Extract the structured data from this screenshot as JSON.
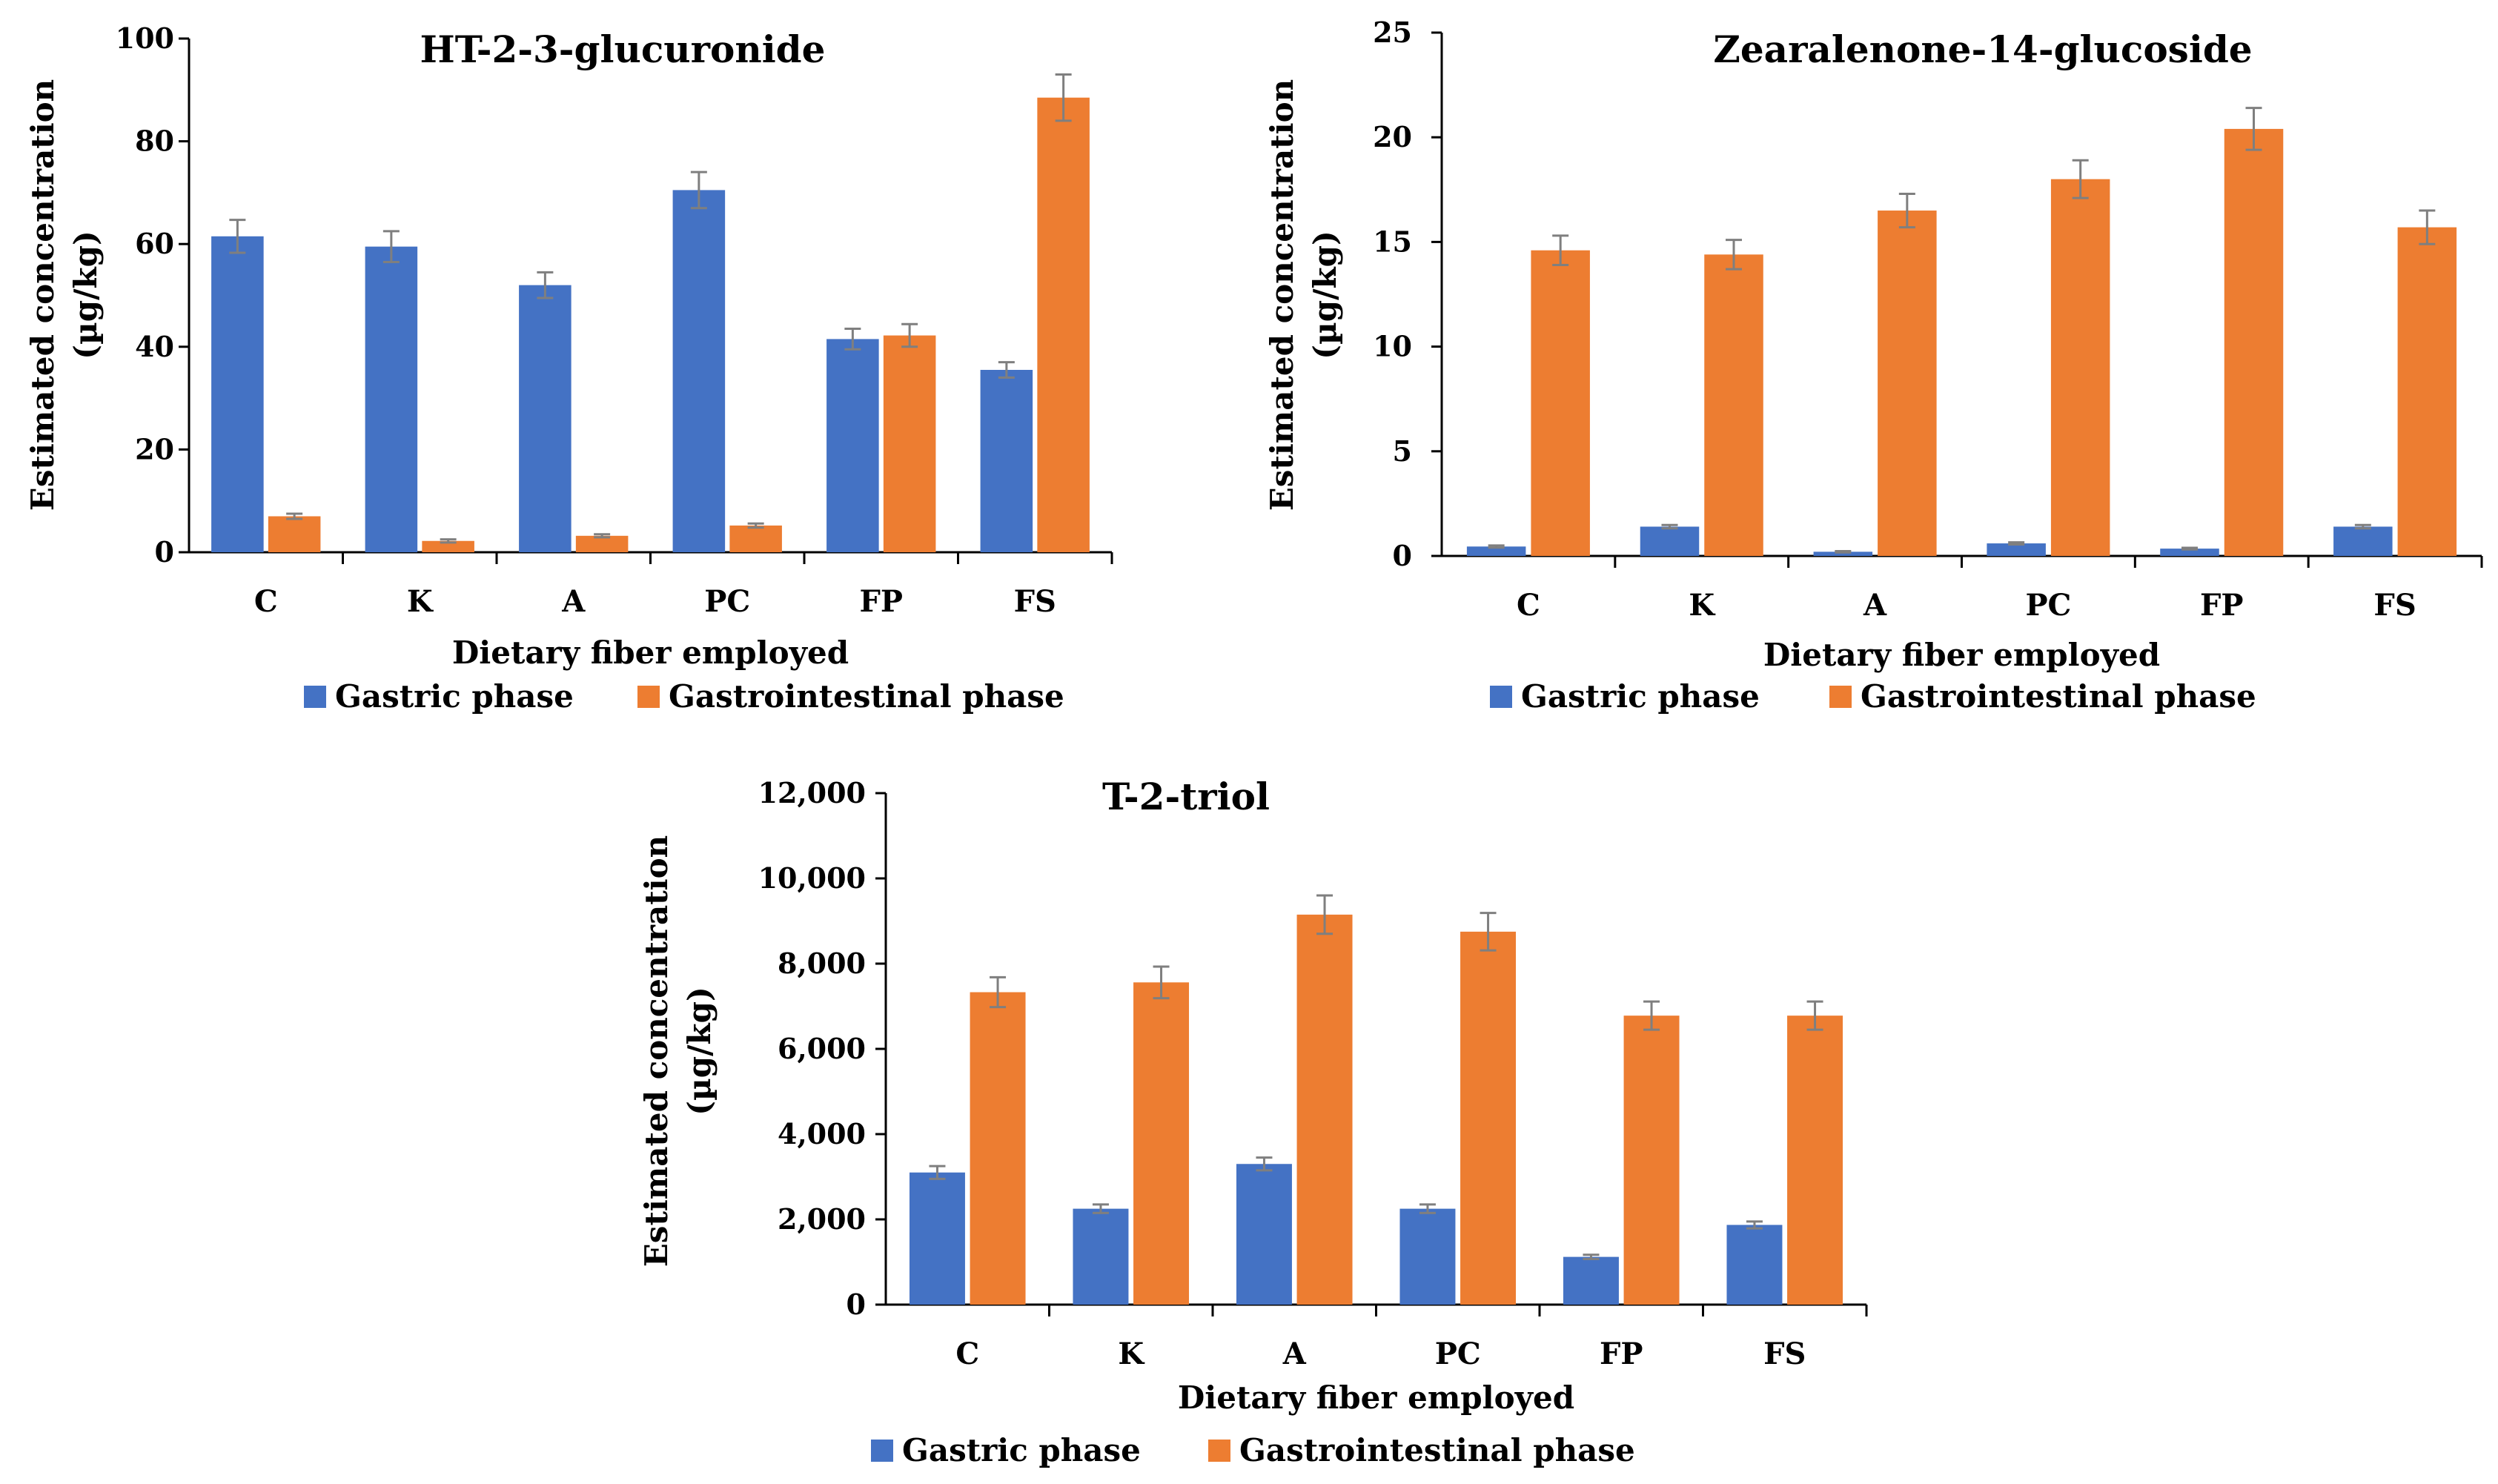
{
  "colors": {
    "gastric": "#4472C4",
    "gastrointestinal": "#ED7D31",
    "errorbar": "#7F7F7F",
    "axis": "#000000"
  },
  "chart_data": [
    {
      "type": "bar",
      "title": "HT-2-3-glucuronide",
      "xlabel": "Dietary fiber employed",
      "ylabel_line1": "Estimated concentration",
      "ylabel_line2": "(µg/kg)",
      "categories": [
        "C",
        "K",
        "A",
        "PC",
        "FP",
        "FS"
      ],
      "ylim": [
        0,
        100
      ],
      "yticks": [
        0,
        20,
        40,
        60,
        80,
        100
      ],
      "ytick_labels": [
        "0",
        "20",
        "40",
        "60",
        "80",
        "100"
      ],
      "series": [
        {
          "name": "Gastric phase",
          "values": [
            61.5,
            59.5,
            52,
            70.5,
            41.5,
            35.5
          ],
          "errors": [
            3.2,
            3,
            2.5,
            3.5,
            2,
            1.5
          ]
        },
        {
          "name": "Gastrointestinal phase",
          "values": [
            7,
            2.2,
            3.2,
            5.2,
            42.2,
            88.5
          ],
          "errors": [
            0.5,
            0.3,
            0.3,
            0.4,
            2.2,
            4.5
          ]
        }
      ],
      "legend": [
        "Gastric phase",
        "Gastrointestinal phase"
      ]
    },
    {
      "type": "bar",
      "title": "Zearalenone-14-glucoside",
      "xlabel": "Dietary fiber employed",
      "ylabel_line1": "Estimated concentration",
      "ylabel_line2": "(µg/kg)",
      "categories": [
        "C",
        "K",
        "A",
        "PC",
        "FP",
        "FS"
      ],
      "ylim": [
        0,
        25
      ],
      "yticks": [
        0,
        5,
        10,
        15,
        20,
        25
      ],
      "ytick_labels": [
        "0",
        "5",
        "10",
        "15",
        "20",
        "25"
      ],
      "series": [
        {
          "name": "Gastric phase",
          "values": [
            0.45,
            1.4,
            0.2,
            0.6,
            0.35,
            1.4
          ],
          "errors": [
            0.05,
            0.08,
            0.03,
            0.05,
            0.04,
            0.08
          ]
        },
        {
          "name": "Gastrointestinal phase",
          "values": [
            14.6,
            14.4,
            16.5,
            18,
            20.4,
            15.7
          ],
          "errors": [
            0.7,
            0.7,
            0.8,
            0.9,
            1,
            0.8
          ]
        }
      ],
      "legend": [
        "Gastric phase",
        "Gastrointestinal phase"
      ]
    },
    {
      "type": "bar",
      "title": "T-2-triol",
      "xlabel": "Dietary fiber employed",
      "ylabel_line1": "Estimated concentration",
      "ylabel_line2": "(µg/kg)",
      "categories": [
        "C",
        "K",
        "A",
        "PC",
        "FP",
        "FS"
      ],
      "ylim": [
        0,
        12000
      ],
      "yticks": [
        0,
        2000,
        4000,
        6000,
        8000,
        10000,
        12000
      ],
      "ytick_labels": [
        "0",
        "2,000",
        "4,000",
        "6,000",
        "8,000",
        "10,000",
        "12,000"
      ],
      "series": [
        {
          "name": "Gastric phase",
          "values": [
            3100,
            2250,
            3300,
            2250,
            1120,
            1870
          ],
          "errors": [
            150,
            100,
            150,
            100,
            50,
            80
          ]
        },
        {
          "name": "Gastrointestinal phase",
          "values": [
            7330,
            7560,
            9150,
            8750,
            6780,
            6780
          ],
          "errors": [
            350,
            370,
            450,
            440,
            330,
            330
          ]
        }
      ],
      "legend": [
        "Gastric phase",
        "Gastrointestinal phase"
      ]
    }
  ]
}
